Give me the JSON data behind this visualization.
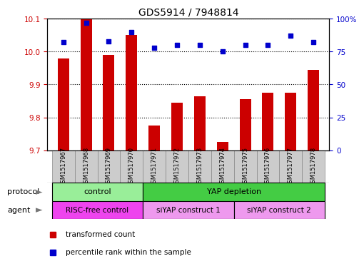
{
  "title": "GDS5914 / 7948814",
  "samples": [
    "GSM1517967",
    "GSM1517968",
    "GSM1517969",
    "GSM1517970",
    "GSM1517971",
    "GSM1517972",
    "GSM1517973",
    "GSM1517974",
    "GSM1517975",
    "GSM1517976",
    "GSM1517977",
    "GSM1517978"
  ],
  "transformed_counts": [
    9.98,
    10.1,
    9.99,
    10.05,
    9.775,
    9.845,
    9.865,
    9.725,
    9.855,
    9.875,
    9.875,
    9.945
  ],
  "percentile_ranks": [
    82,
    97,
    83,
    90,
    78,
    80,
    80,
    75,
    80,
    80,
    87,
    82
  ],
  "ylim_left": [
    9.7,
    10.1
  ],
  "ylim_right": [
    0,
    100
  ],
  "yticks_left": [
    9.7,
    9.8,
    9.9,
    10.0,
    10.1
  ],
  "yticks_right": [
    0,
    25,
    50,
    75,
    100
  ],
  "ytick_labels_right": [
    "0",
    "25",
    "50",
    "75",
    "100%"
  ],
  "bar_color": "#cc0000",
  "dot_color": "#0000cc",
  "bar_bottom": 9.7,
  "grid_color": "#000000",
  "protocol_groups": [
    {
      "label": "control",
      "start": 0,
      "end": 3,
      "color": "#99ee99"
    },
    {
      "label": "YAP depletion",
      "start": 4,
      "end": 11,
      "color": "#44cc44"
    }
  ],
  "agent_groups": [
    {
      "label": "RISC-free control",
      "start": 0,
      "end": 3,
      "color": "#ee44ee"
    },
    {
      "label": "siYAP construct 1",
      "start": 4,
      "end": 7,
      "color": "#ee99ee"
    },
    {
      "label": "siYAP construct 2",
      "start": 8,
      "end": 11,
      "color": "#ee99ee"
    }
  ],
  "legend_items": [
    {
      "label": "transformed count",
      "color": "#cc0000"
    },
    {
      "label": "percentile rank within the sample",
      "color": "#0000cc"
    }
  ],
  "protocol_label": "protocol",
  "agent_label": "agent",
  "bg_color": "#ffffff",
  "tick_label_color_left": "#cc0000",
  "tick_label_color_right": "#0000cc",
  "sample_box_color": "#cccccc",
  "sample_box_edge": "#888888"
}
